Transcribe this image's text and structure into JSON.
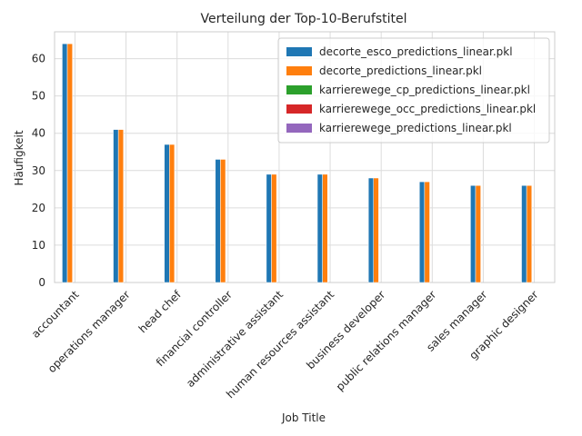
{
  "chart_data": {
    "type": "bar",
    "title": "Verteilung der Top-10-Berufstitel",
    "xlabel": "Job Title",
    "ylabel": "Häufigkeit",
    "ylim": [
      0,
      67.2
    ],
    "yticks": [
      0,
      10,
      20,
      30,
      40,
      50,
      60
    ],
    "grid": true,
    "legend_position": "top-right",
    "categories": [
      "accountant",
      "operations manager",
      "head chef",
      "financial controller",
      "administrative assistant",
      "human resources assistant",
      "business developer",
      "public relations manager",
      "sales manager",
      "graphic designer"
    ],
    "series": [
      {
        "name": "decorte_esco_predictions_linear.pkl",
        "color": "#1f77b4",
        "values": [
          64,
          41,
          37,
          33,
          29,
          29,
          28,
          27,
          26,
          26
        ]
      },
      {
        "name": "decorte_predictions_linear.pkl",
        "color": "#ff7f0e",
        "values": [
          64,
          41,
          37,
          33,
          29,
          29,
          28,
          27,
          26,
          26
        ]
      },
      {
        "name": "karrierewege_cp_predictions_linear.pkl",
        "color": "#2ca02c",
        "values": [
          0,
          0,
          0,
          0,
          0,
          0,
          0,
          0,
          0,
          0
        ]
      },
      {
        "name": "karrierewege_occ_predictions_linear.pkl",
        "color": "#d62728",
        "values": [
          0,
          0,
          0,
          0,
          0,
          0,
          0,
          0,
          0,
          0
        ]
      },
      {
        "name": "karrierewege_predictions_linear.pkl",
        "color": "#9467bd",
        "values": [
          0,
          0,
          0,
          0,
          0,
          0,
          0,
          0,
          0,
          0
        ]
      }
    ]
  }
}
